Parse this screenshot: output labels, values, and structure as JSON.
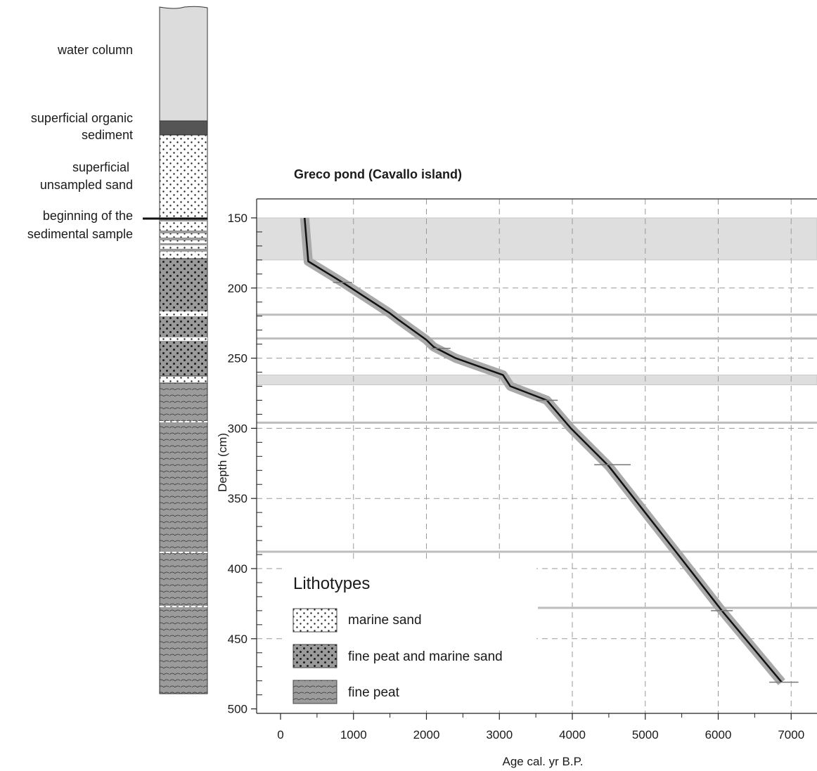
{
  "column": {
    "labels": [
      [
        "water column"
      ],
      [
        "superficial organic",
        "sediment"
      ],
      [
        "superficial",
        "unsampled sand"
      ],
      [
        "beginning of the",
        "sedimental sample"
      ]
    ]
  },
  "legend": {
    "title": "Lithotypes",
    "items": [
      "marine sand",
      "fine peat and marine sand",
      "fine peat"
    ]
  },
  "chart_data": {
    "type": "line",
    "title": "Greco pond (Cavallo island)",
    "xlabel": "Age cal. yr B.P.",
    "ylabel": "Depth (cm)",
    "xlim": [
      0,
      7300
    ],
    "ylim": [
      150,
      500
    ],
    "y_inverted": true,
    "xticks": [
      0,
      1000,
      2000,
      3000,
      4000,
      5000,
      6000,
      7000
    ],
    "yticks": [
      150,
      200,
      250,
      300,
      350,
      400,
      450,
      500
    ],
    "grid": true,
    "series": [
      {
        "points": [
          [
            330,
            150
          ],
          [
            380,
            181
          ],
          [
            850,
            196
          ],
          [
            1500,
            218
          ],
          [
            1600,
            222
          ],
          [
            2000,
            237
          ],
          [
            2100,
            242
          ],
          [
            2400,
            250
          ],
          [
            3050,
            262
          ],
          [
            3150,
            270
          ],
          [
            3650,
            280
          ],
          [
            3980,
            300
          ],
          [
            4500,
            327
          ],
          [
            5450,
            390
          ],
          [
            6050,
            430
          ],
          [
            6870,
            481
          ]
        ]
      }
    ],
    "hiatus_bands": [
      [
        150,
        180
      ],
      [
        262,
        269
      ]
    ],
    "horizons": [
      219,
      236,
      296,
      388,
      428
    ],
    "dated_samples": [
      {
        "depth": 196,
        "age": 850,
        "error": 130
      },
      {
        "depth": 243,
        "age": 2200,
        "error": 130
      },
      {
        "depth": 280,
        "age": 3650,
        "error": 150
      },
      {
        "depth": 326,
        "age": 4550,
        "error": 250
      },
      {
        "depth": 430,
        "age": 6050,
        "error": 150
      },
      {
        "depth": 481,
        "age": 6900,
        "error": 200
      }
    ]
  }
}
